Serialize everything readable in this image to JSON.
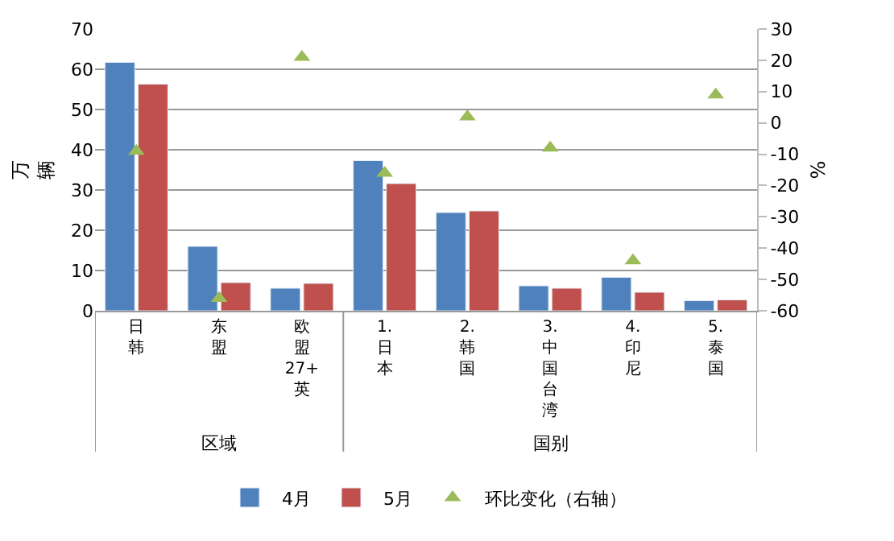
{
  "chart_data": {
    "type": "bar",
    "ylabel": "万辆",
    "y2label": "%",
    "categories": [
      "日韩",
      "东盟",
      "欧盟27+英",
      "1.日本",
      "2.韩国",
      "3.中国台湾",
      "4.印尼",
      "5.泰国"
    ],
    "series": [
      {
        "name": "4月",
        "color": "#4f81bd",
        "values": [
          61.7,
          16,
          5.6,
          37.3,
          24.4,
          6.2,
          8.3,
          2.5
        ]
      },
      {
        "name": "5月",
        "color": "#c0504d",
        "values": [
          56.3,
          7,
          6.8,
          31.6,
          24.8,
          5.6,
          4.6,
          2.7
        ]
      },
      {
        "name": "环比变化（右轴）",
        "type": "scatter",
        "axis": "y2",
        "marker": "triangle",
        "color": "#9bbb59",
        "values": [
          -9,
          -56,
          21,
          -16,
          2,
          -8,
          -44,
          9
        ]
      }
    ],
    "ylim": [
      0,
      70
    ],
    "yticks": [
      0,
      10,
      20,
      30,
      40,
      50,
      60,
      70
    ],
    "y2lim": [
      -60,
      30
    ],
    "y2ticks": [
      -60,
      -50,
      -40,
      -30,
      -20,
      -10,
      0,
      10,
      20,
      30
    ],
    "grid": "y",
    "legend": "bottom",
    "annotations": [
      "区域",
      "国别"
    ]
  }
}
